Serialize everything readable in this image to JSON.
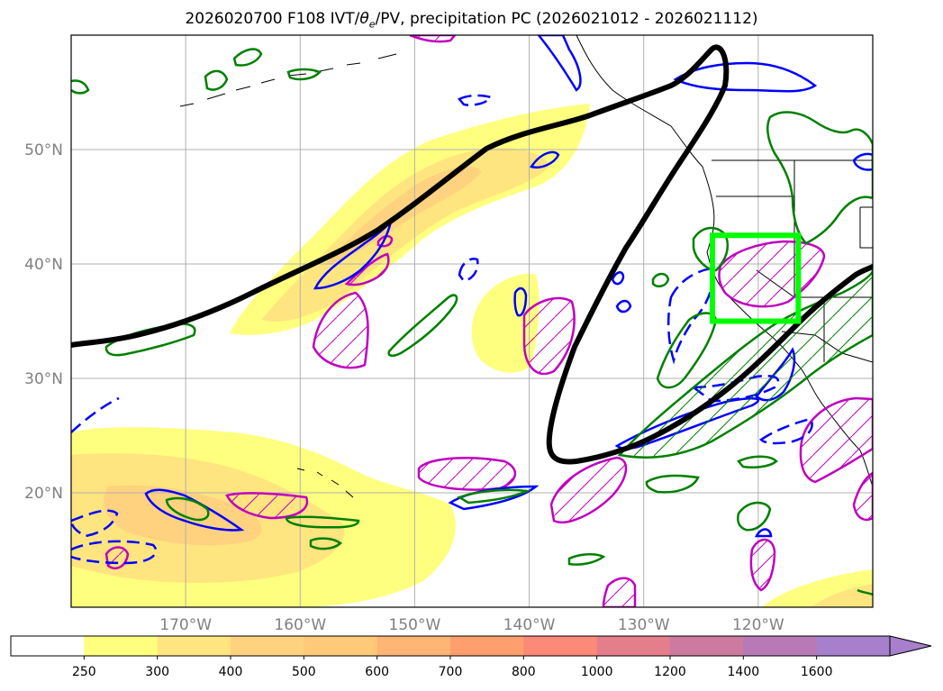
{
  "title": {
    "prefix": "2026020700 F108 IVT/",
    "theta": "θ",
    "theta_sub": "e",
    "suffix": "/PV, precipitation PC (2026021012 - 2026021112)"
  },
  "map": {
    "lon_range": [
      -180,
      -110
    ],
    "lat_range": [
      10,
      60
    ],
    "lon_ticks": [
      {
        "value": -170,
        "label": "170°W"
      },
      {
        "value": -160,
        "label": "160°W"
      },
      {
        "value": -150,
        "label": "150°W"
      },
      {
        "value": -140,
        "label": "140°W"
      },
      {
        "value": -130,
        "label": "130°W"
      },
      {
        "value": -120,
        "label": "120°W"
      }
    ],
    "lat_ticks": [
      {
        "value": 20,
        "label": "20°N"
      },
      {
        "value": 30,
        "label": "30°N"
      },
      {
        "value": 40,
        "label": "40°N"
      },
      {
        "value": 50,
        "label": "50°N"
      }
    ],
    "colors": {
      "ivt_250": "#ffff7f",
      "ivt_300": "#ffe57f",
      "ivt_400": "#ffd280",
      "theta_e": "#008000",
      "pv_solid": "#0000ff",
      "precip": "#c000c0",
      "box": "#00ff00",
      "jet": "#000000"
    },
    "target_box": {
      "lon": [
        -124,
        -116.5
      ],
      "lat": [
        35,
        42.5
      ]
    }
  },
  "colorbar": {
    "levels": [
      "250",
      "300",
      "400",
      "500",
      "600",
      "700",
      "800",
      "1000",
      "1200",
      "1400",
      "1600"
    ],
    "colors": [
      "#ffffff",
      "#ffff7f",
      "#ffe57f",
      "#ffd280",
      "#ffc97a",
      "#ffb574",
      "#ff9f6e",
      "#fb8a78",
      "#e47e8b",
      "#cc7aa0",
      "#b77ab6",
      "#a77fcc"
    ]
  }
}
